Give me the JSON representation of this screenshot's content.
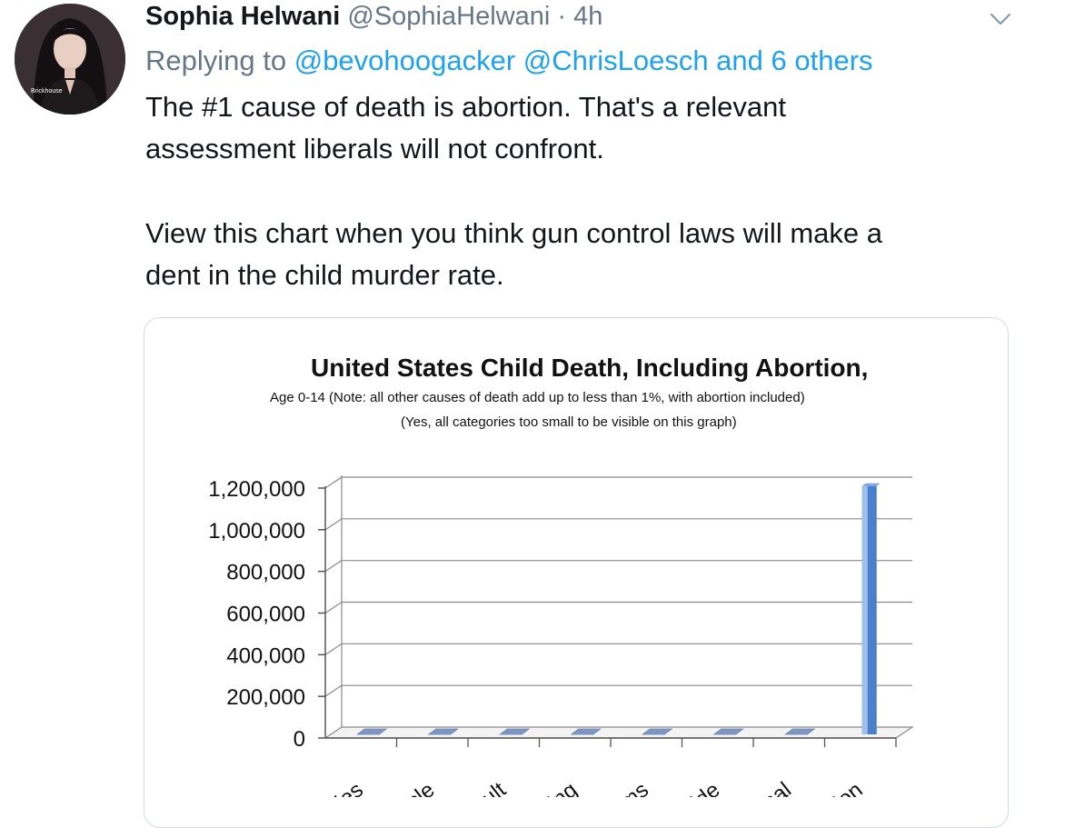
{
  "tweet": {
    "author_name": "Sophia Helwani",
    "author_handle": "@SophiaHelwani",
    "separator": " · ",
    "time": "4h",
    "avatar_caption": "Brickhouse",
    "reply_prefix": "Replying to ",
    "reply_mentions": "@bevohoogacker @ChrisLoesch and 6 others",
    "text_lines": [
      "The #1 cause of death is abortion. That's a relevant",
      "assessment liberals will not confront.",
      "View this chart when you think gun control laws will make a",
      "dent in the child murder rate."
    ]
  },
  "icons": {
    "menu": "chevron-down-icon"
  },
  "colors": {
    "link": "#1da1f2",
    "meta": "#657786",
    "bar_main": "#4a7fcc",
    "bar_light": "#9dbfea"
  },
  "chart_data": {
    "type": "bar",
    "title": "United States Child Death, Including Abortion,",
    "subtitle": "Age 0-14 (Note: all other causes of death add up to less than 1%, with abortion included)",
    "subtitle2": "(Yes, all categories too small to be visible on this graph)",
    "categories": [
      "ries",
      "cle",
      "ult",
      "ing",
      "ms",
      "ide",
      "nal",
      "ion"
    ],
    "values": [
      0,
      0,
      0,
      0,
      0,
      0,
      0,
      1210000
    ],
    "yticks": [
      "1,200,000",
      "1,000,000",
      "800,000",
      "600,000",
      "400,000",
      "200,000",
      "0"
    ],
    "ylim": [
      0,
      1200000
    ],
    "grid": true
  }
}
